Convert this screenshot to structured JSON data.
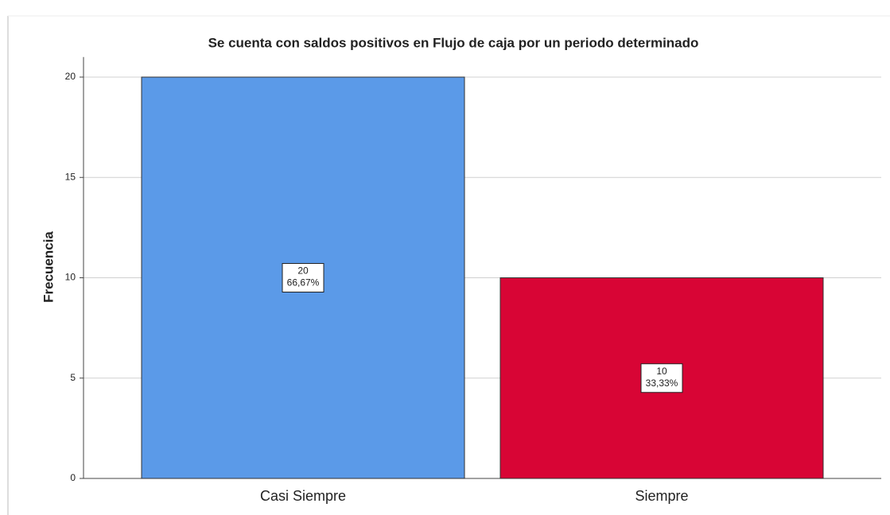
{
  "chart_data": {
    "type": "bar",
    "title": "Se cuenta con saldos positivos en Flujo de caja por un periodo determinado",
    "ylabel": "Frecuencia",
    "categories": [
      "Casi Siempre",
      "Siempre"
    ],
    "values": [
      20,
      10
    ],
    "percent_labels": [
      "66,67%",
      "33,33%"
    ],
    "colors": [
      "#5b9ae8",
      "#d80535"
    ],
    "ylim": [
      0,
      21
    ],
    "yticks": [
      0,
      5,
      10,
      15,
      20
    ],
    "grid": true
  }
}
